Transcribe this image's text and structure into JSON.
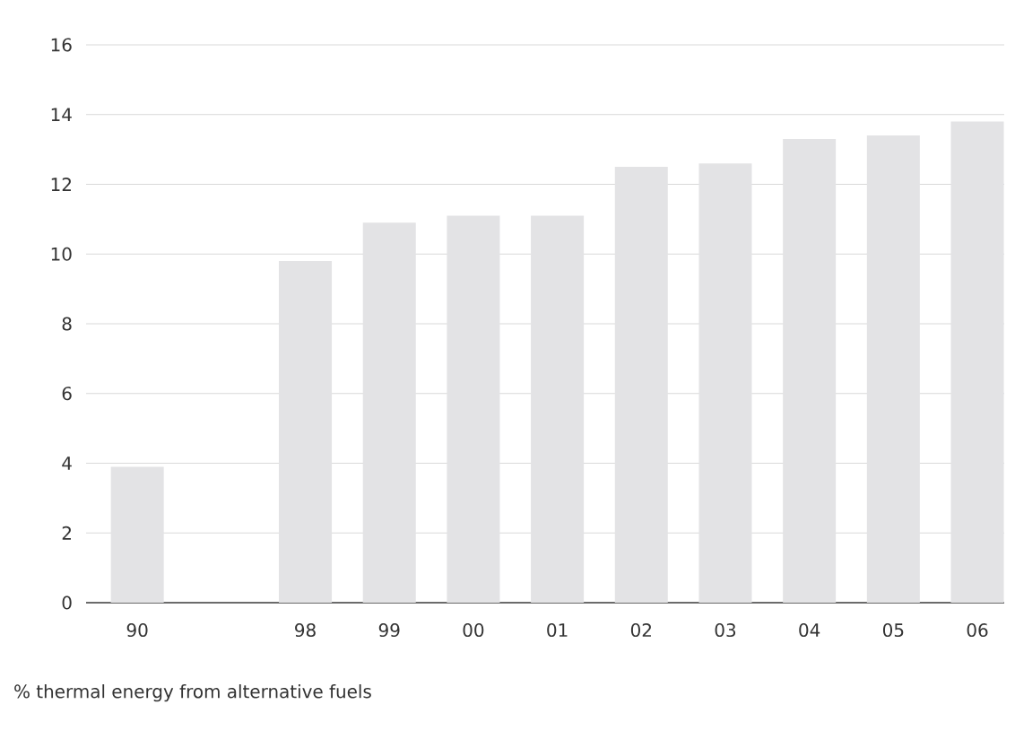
{
  "chart_data": {
    "type": "bar",
    "categories": [
      "90",
      null,
      "98",
      "99",
      "00",
      "01",
      "02",
      "03",
      "04",
      "05",
      "06"
    ],
    "values": [
      3.9,
      null,
      9.8,
      10.9,
      11.1,
      11.1,
      12.5,
      12.6,
      13.3,
      13.4,
      13.8
    ],
    "color": "#e3e3e5",
    "ylim": [
      0,
      16
    ],
    "yticks": [
      0,
      2,
      4,
      6,
      8,
      10,
      12,
      14,
      16
    ],
    "grid": "y",
    "xlabel": "% thermal energy from alternative fuels"
  }
}
